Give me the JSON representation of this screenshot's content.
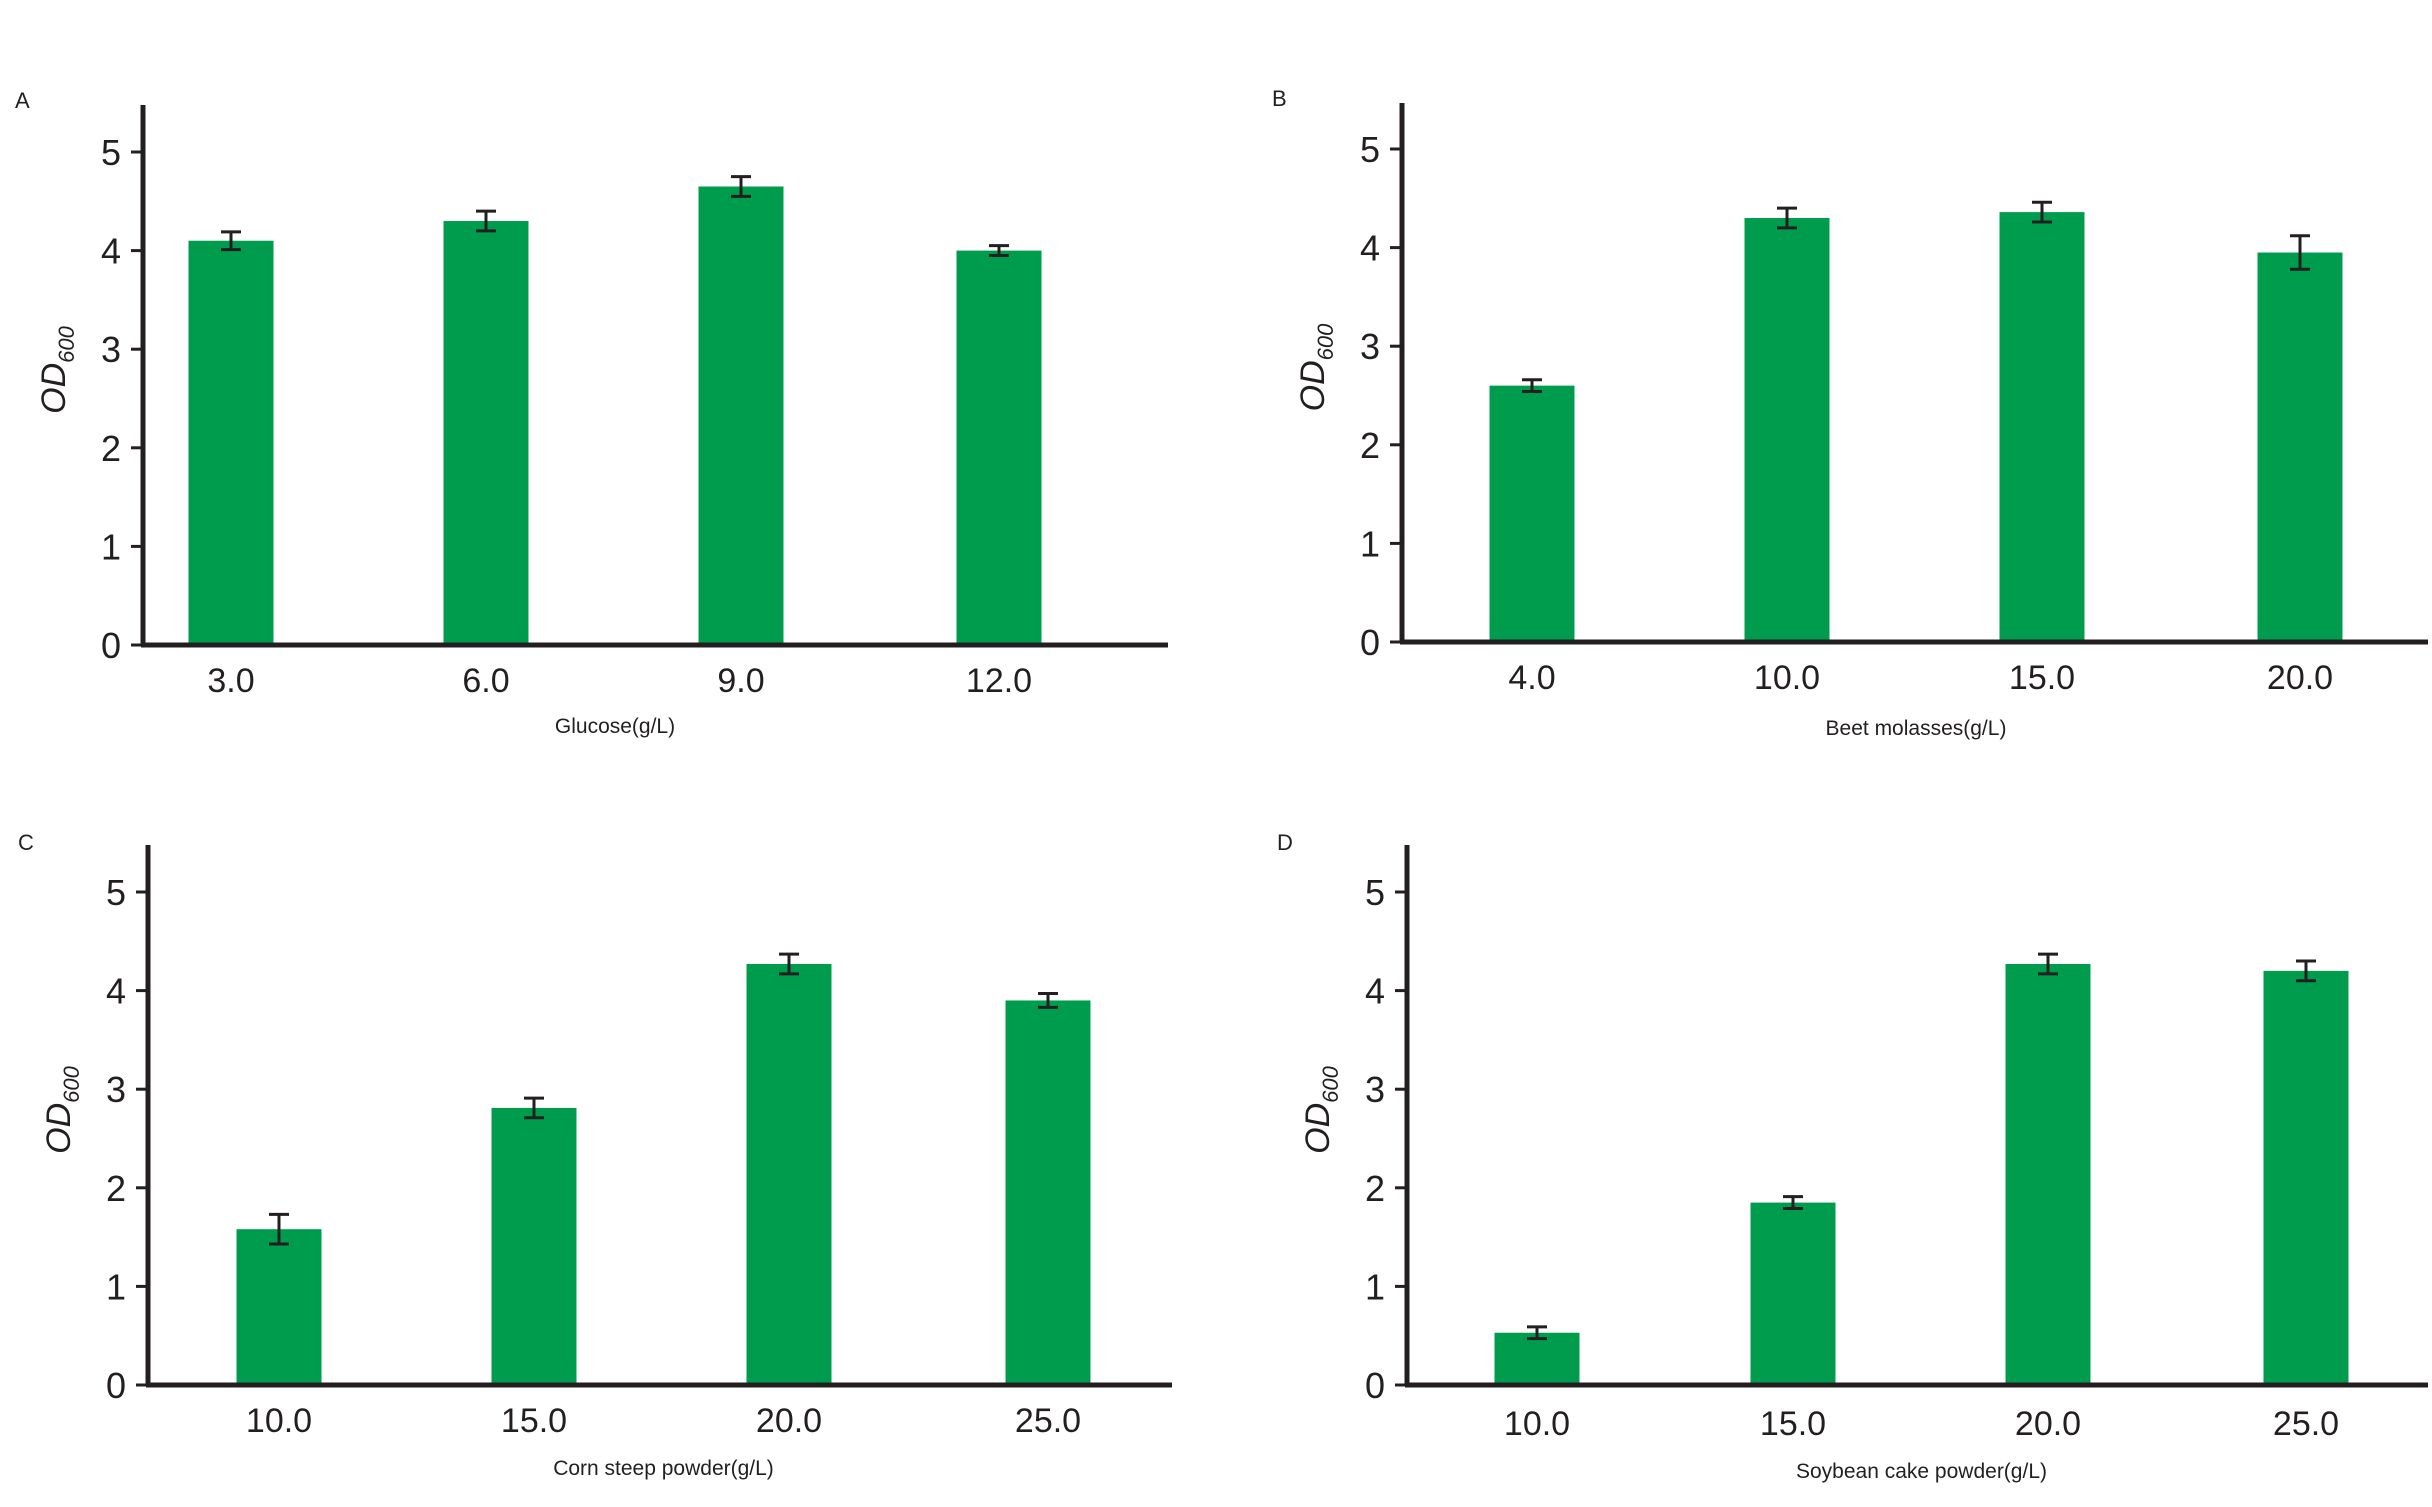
{
  "colors": {
    "bar": "#009c4e",
    "axis": "#231f20"
  },
  "chart_data": [
    {
      "type": "bar",
      "panel": "A",
      "categories": [
        "3.0",
        "6.0",
        "9.0",
        "12.0"
      ],
      "values": [
        4.1,
        4.3,
        4.65,
        4.0
      ],
      "errors": [
        0.09,
        0.1,
        0.1,
        0.05
      ],
      "xlabel": "Glucose(g/L)",
      "ylabel": "OD",
      "ylabel_sub": "600",
      "ylim": [
        0,
        5.5
      ],
      "yticks": [
        "0",
        "1",
        "2",
        "3",
        "4",
        "5"
      ],
      "grid": false,
      "legend": "none"
    },
    {
      "type": "bar",
      "panel": "B",
      "categories": [
        "4.0",
        "10.0",
        "15.0",
        "20.0"
      ],
      "values": [
        2.6,
        4.3,
        4.36,
        3.95
      ],
      "errors": [
        0.06,
        0.1,
        0.1,
        0.17
      ],
      "xlabel": "Beet molasses(g/L)",
      "ylabel": "OD",
      "ylabel_sub": "600",
      "ylim": [
        0,
        5.5
      ],
      "yticks": [
        "0",
        "1",
        "2",
        "3",
        "4",
        "5"
      ],
      "grid": false,
      "legend": "none"
    },
    {
      "type": "bar",
      "panel": "C",
      "categories": [
        "10.0",
        "15.0",
        "20.0",
        "25.0"
      ],
      "values": [
        1.58,
        2.81,
        4.27,
        3.9
      ],
      "errors": [
        0.15,
        0.1,
        0.1,
        0.07
      ],
      "xlabel": "Corn steep powder(g/L)",
      "ylabel": "OD",
      "ylabel_sub": "600",
      "ylim": [
        0,
        5.5
      ],
      "yticks": [
        "0",
        "1",
        "2",
        "3",
        "4",
        "5"
      ],
      "grid": false,
      "legend": "none"
    },
    {
      "type": "bar",
      "panel": "D",
      "categories": [
        "10.0",
        "15.0",
        "20.0",
        "25.0"
      ],
      "values": [
        0.53,
        1.85,
        4.27,
        4.2
      ],
      "errors": [
        0.06,
        0.06,
        0.1,
        0.1
      ],
      "xlabel": "Soybean cake powder(g/L)",
      "ylabel": "OD",
      "ylabel_sub": "600",
      "ylim": [
        0,
        5.5
      ],
      "yticks": [
        "0",
        "1",
        "2",
        "3",
        "4",
        "5"
      ],
      "grid": false,
      "legend": "none"
    }
  ]
}
